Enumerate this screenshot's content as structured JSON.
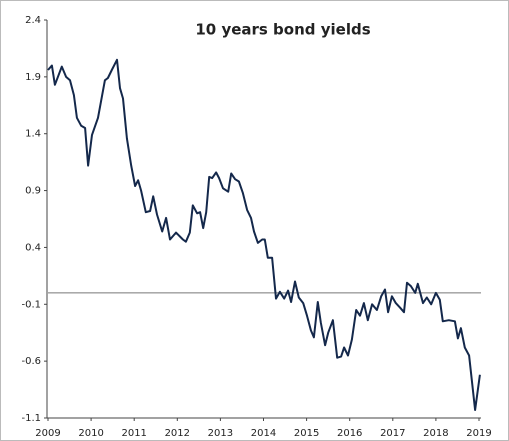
{
  "chart_data": {
    "type": "line",
    "title": "10 years bond yields",
    "x": [
      2009.0,
      2009.09,
      2009.16,
      2009.32,
      2009.42,
      2009.51,
      2009.6,
      2009.67,
      2009.77,
      2009.86,
      2009.93,
      2010.02,
      2010.16,
      2010.32,
      2010.39,
      2010.48,
      2010.6,
      2010.67,
      2010.74,
      2010.83,
      2010.93,
      2011.02,
      2011.09,
      2011.16,
      2011.27,
      2011.37,
      2011.44,
      2011.53,
      2011.65,
      2011.74,
      2011.83,
      2011.97,
      2012.13,
      2012.2,
      2012.29,
      2012.36,
      2012.46,
      2012.53,
      2012.6,
      2012.67,
      2012.74,
      2012.81,
      2012.9,
      2012.97,
      2013.06,
      2013.18,
      2013.25,
      2013.34,
      2013.43,
      2013.52,
      2013.62,
      2013.71,
      2013.78,
      2013.87,
      2013.97,
      2014.03,
      2014.1,
      2014.2,
      2014.29,
      2014.38,
      2014.48,
      2014.57,
      2014.64,
      2014.73,
      2014.82,
      2014.92,
      2015.01,
      2015.1,
      2015.17,
      2015.26,
      2015.33,
      2015.43,
      2015.5,
      2015.61,
      2015.71,
      2015.8,
      2015.87,
      2015.96,
      2016.05,
      2016.15,
      2016.24,
      2016.33,
      2016.42,
      2016.52,
      2016.63,
      2016.73,
      2016.82,
      2016.89,
      2016.98,
      2017.07,
      2017.17,
      2017.26,
      2017.33,
      2017.42,
      2017.52,
      2017.58,
      2017.7,
      2017.79,
      2017.89,
      2018.0,
      2018.09,
      2018.16,
      2018.3,
      2018.44,
      2018.51,
      2018.58,
      2018.67,
      2018.77,
      2018.91,
      2019.02
    ],
    "values": [
      1.96,
      2.0,
      1.83,
      1.99,
      1.9,
      1.87,
      1.74,
      1.54,
      1.47,
      1.45,
      1.12,
      1.39,
      1.54,
      1.87,
      1.89,
      1.96,
      2.05,
      1.8,
      1.71,
      1.36,
      1.12,
      0.94,
      0.99,
      0.9,
      0.71,
      0.72,
      0.85,
      0.69,
      0.54,
      0.66,
      0.47,
      0.53,
      0.47,
      0.45,
      0.53,
      0.77,
      0.7,
      0.71,
      0.57,
      0.71,
      1.02,
      1.01,
      1.06,
      1.01,
      0.92,
      0.89,
      1.05,
      1.0,
      0.98,
      0.88,
      0.73,
      0.66,
      0.54,
      0.44,
      0.47,
      0.47,
      0.31,
      0.31,
      -0.05,
      0.01,
      -0.05,
      0.02,
      -0.08,
      0.1,
      -0.04,
      -0.09,
      -0.2,
      -0.33,
      -0.39,
      -0.08,
      -0.26,
      -0.46,
      -0.35,
      -0.24,
      -0.57,
      -0.56,
      -0.48,
      -0.55,
      -0.41,
      -0.15,
      -0.2,
      -0.09,
      -0.24,
      -0.1,
      -0.15,
      -0.03,
      0.03,
      -0.17,
      -0.03,
      -0.09,
      -0.13,
      -0.17,
      0.09,
      0.06,
      0.0,
      0.08,
      -0.09,
      -0.04,
      -0.1,
      0.0,
      -0.06,
      -0.25,
      -0.24,
      -0.25,
      -0.4,
      -0.31,
      -0.48,
      -0.55,
      -1.03,
      -0.72
    ],
    "color": "#14284b",
    "xlim": [
      2009,
      2019
    ],
    "xticks": [
      2009,
      2010,
      2011,
      2012,
      2013,
      2014,
      2015,
      2016,
      2017,
      2018,
      2019
    ],
    "ylim": [
      -1.1,
      2.4
    ],
    "yticks": [
      2.4,
      1.9,
      1.4,
      0.9,
      0.4,
      -0.1,
      -0.6,
      -1.1
    ],
    "zero_line": 0
  }
}
